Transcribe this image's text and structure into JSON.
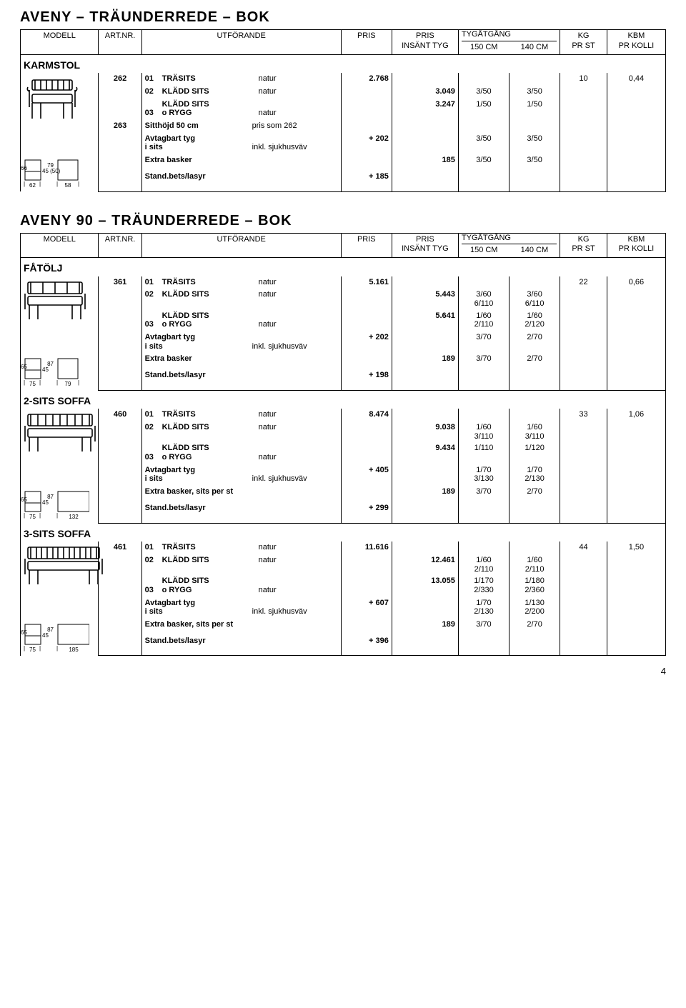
{
  "headers": {
    "modell": "MODELL",
    "artnr": "ART.NR.",
    "utforande": "UTFÖRANDE",
    "pris": "PRIS",
    "insatt": "PRIS\nINSÄNT TYG",
    "tyg": "TYGÅTGÅNG",
    "tyg150": "150 CM",
    "tyg140": "140 CM",
    "kg": "KG\nPR ST",
    "kbm": "KBM\nPR KOLLI"
  },
  "sections": [
    {
      "title": "AVENY – TRÄUNDERREDE – BOK",
      "groups": [
        {
          "heading": "KARMSTOL",
          "svg": "armchair",
          "dims": {
            "left_h": "66",
            "left_seat": "45 (50)",
            "left_w": "62",
            "right_h": "79",
            "right_w": "58"
          },
          "rows": [
            {
              "artnr": "262",
              "code": "01",
              "name": "TRÄSITS",
              "val": "natur",
              "pris": "2.768",
              "kg": "10",
              "kbm": "0,44"
            },
            {
              "code": "02",
              "name": "KLÄDD SITS",
              "val": "natur",
              "insatt": "3.049",
              "t150": "3/50",
              "t140": "3/50"
            },
            {
              "code": "03",
              "name": "KLÄDD SITS\no RYGG",
              "val": "natur",
              "insatt": "3.247",
              "t150": "1/50",
              "t140": "1/50"
            },
            {
              "artnr": "263",
              "sub_l": "Sitthöjd 50 cm",
              "sub_r": "pris som 262"
            },
            {
              "sub_l": "Avtagbart tyg\ni sits",
              "sub_r": "inkl. sjukhusväv",
              "pris": "+ 202",
              "t150": "3/50",
              "t140": "3/50"
            },
            {
              "sub_l": "Extra basker",
              "insatt": "185",
              "t150": "3/50",
              "t140": "3/50"
            },
            {
              "sub_l": "Stand.bets/lasyr",
              "pris": "+ 185",
              "last": true
            }
          ]
        }
      ]
    },
    {
      "title": "AVENY 90 – TRÄUNDERREDE – BOK",
      "groups": [
        {
          "heading": "FÅTÖLJ",
          "svg": "sofa1",
          "dims": {
            "left_h": "65",
            "left_seat": "45",
            "left_w": "75",
            "right_h": "87",
            "right_w": "79"
          },
          "rows": [
            {
              "artnr": "361",
              "code": "01",
              "name": "TRÄSITS",
              "val": "natur",
              "pris": "5.161",
              "kg": "22",
              "kbm": "0,66"
            },
            {
              "code": "02",
              "name": "KLÄDD SITS",
              "val": "natur",
              "insatt": "5.443",
              "t150": "3/60\n6/110",
              "t140": "3/60\n6/110"
            },
            {
              "code": "03",
              "name": "KLÄDD SITS\no RYGG",
              "val": "natur",
              "insatt": "5.641",
              "t150": "1/60\n2/110",
              "t140": "1/60\n2/120"
            },
            {
              "sub_l": "Avtagbart tyg\ni sits",
              "sub_r": "inkl. sjukhusväv",
              "pris": "+ 202",
              "t150": "3/70",
              "t140": "2/70"
            },
            {
              "sub_l": "Extra basker",
              "insatt": "189",
              "t150": "3/70",
              "t140": "2/70"
            },
            {
              "sub_l": "Stand.bets/lasyr",
              "pris": "+ 198",
              "last": true
            }
          ]
        },
        {
          "heading": "2-SITS SOFFA",
          "svg": "sofa2",
          "dims": {
            "left_h": "65",
            "left_seat": "45",
            "left_w": "75",
            "right_h": "87",
            "right_w": "132"
          },
          "rows": [
            {
              "artnr": "460",
              "code": "01",
              "name": "TRÄSITS",
              "val": "natur",
              "pris": "8.474",
              "kg": "33",
              "kbm": "1,06"
            },
            {
              "code": "02",
              "name": "KLÄDD SITS",
              "val": "natur",
              "insatt": "9.038",
              "t150": "1/60\n3/110",
              "t140": "1/60\n3/110"
            },
            {
              "code": "03",
              "name": "KLÄDD SITS\no RYGG",
              "val": "natur",
              "insatt": "9.434",
              "t150": "1/110",
              "t140": "1/120"
            },
            {
              "sub_l": "Avtagbart tyg\ni sits",
              "sub_r": "inkl. sjukhusväv",
              "pris": "+ 405",
              "t150": "1/70\n3/130",
              "t140": "1/70\n2/130"
            },
            {
              "sub_l": "Extra basker, sits per st",
              "insatt": "189",
              "t150": "3/70",
              "t140": "2/70"
            },
            {
              "sub_l": "Stand.bets/lasyr",
              "pris": "+ 299",
              "last": true
            }
          ]
        },
        {
          "heading": "3-SITS SOFFA",
          "svg": "sofa3",
          "dims": {
            "left_h": "65",
            "left_seat": "45",
            "left_w": "75",
            "right_h": "87",
            "right_w": "185"
          },
          "rows": [
            {
              "artnr": "461",
              "code": "01",
              "name": "TRÄSITS",
              "val": "natur",
              "pris": "11.616",
              "kg": "44",
              "kbm": "1,50"
            },
            {
              "code": "02",
              "name": "KLÄDD SITS",
              "val": "natur",
              "insatt": "12.461",
              "t150": "1/60\n2/110",
              "t140": "1/60\n2/110"
            },
            {
              "code": "03",
              "name": "KLÄDD SITS\no RYGG",
              "val": "natur",
              "insatt": "13.055",
              "t150": "1/170\n2/330",
              "t140": "1/180\n2/360"
            },
            {
              "sub_l": "Avtagbart tyg\ni sits",
              "sub_r": "inkl. sjukhusväv",
              "pris": "+ 607",
              "t150": "1/70\n2/130",
              "t140": "1/130\n2/200"
            },
            {
              "sub_l": "Extra basker, sits per st",
              "insatt": "189",
              "t150": "3/70",
              "t140": "2/70"
            },
            {
              "sub_l": "Stand.bets/lasyr",
              "pris": "+ 396",
              "last": true
            }
          ]
        }
      ]
    }
  ],
  "pagenum": "4"
}
